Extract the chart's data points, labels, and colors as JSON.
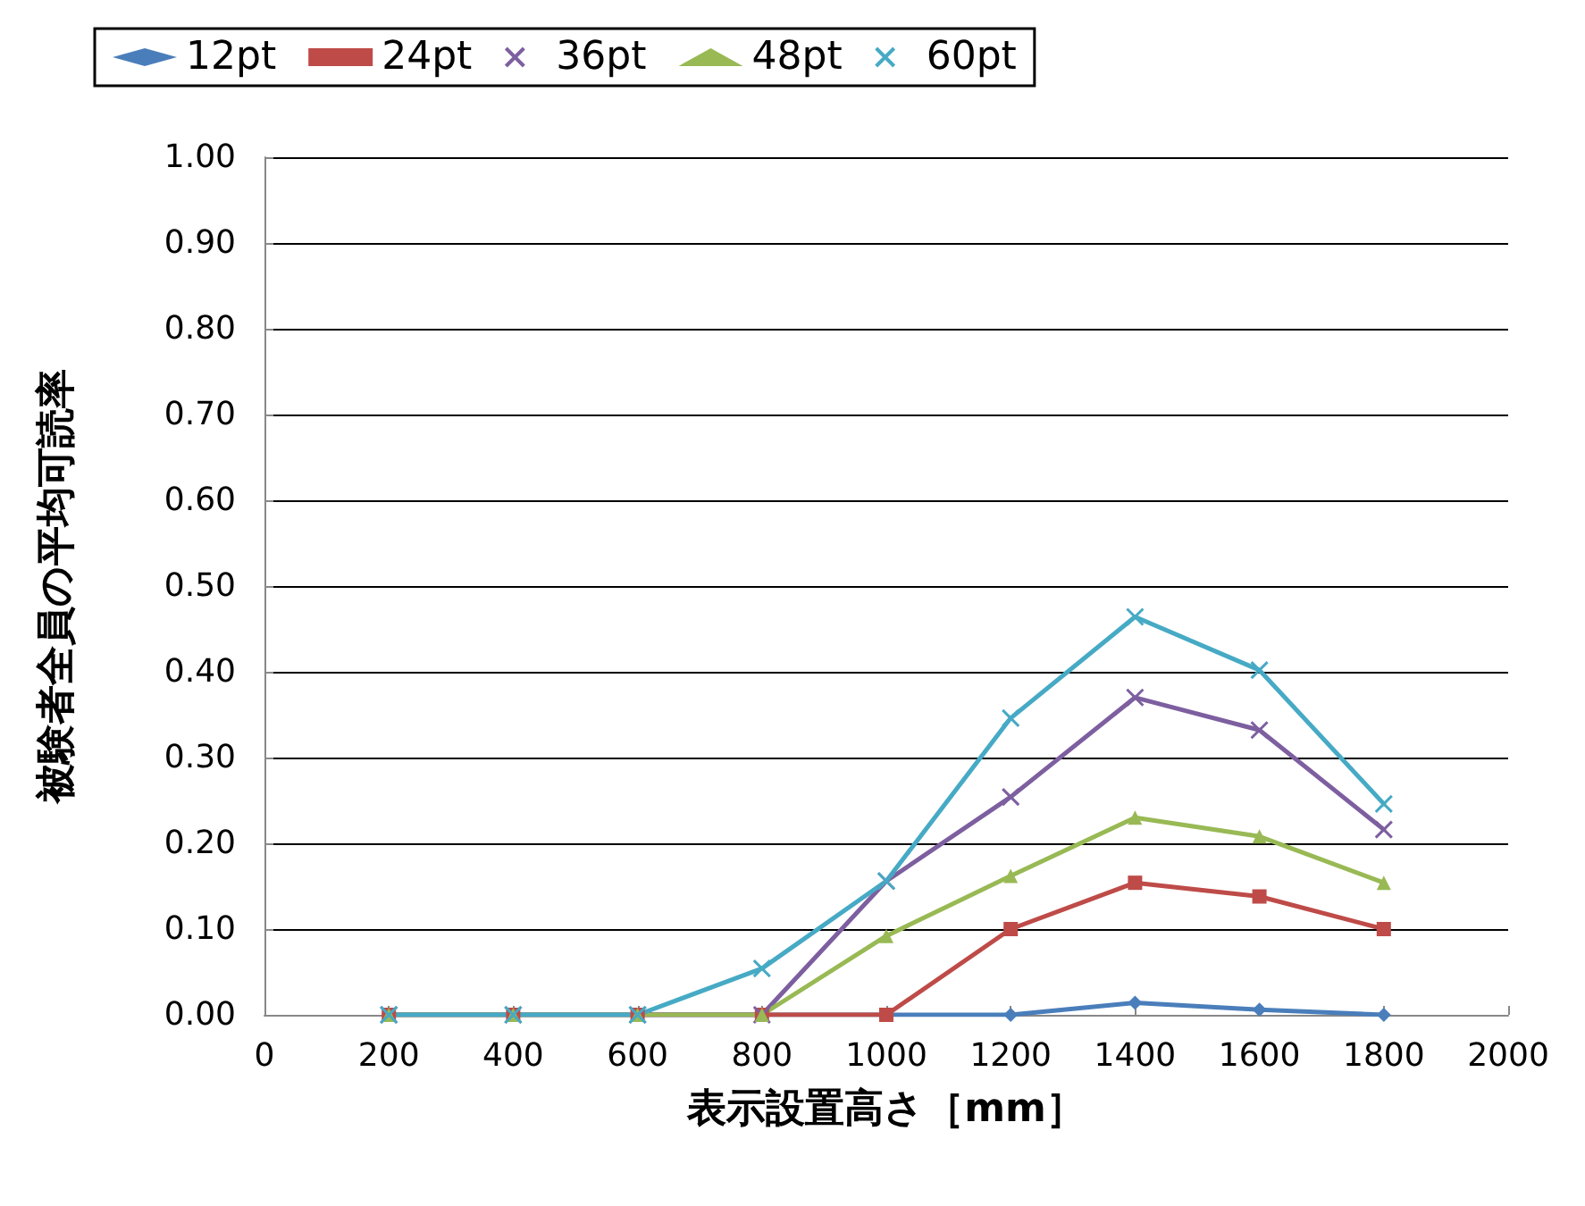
{
  "chart_data": {
    "type": "line",
    "xlabel": "表示設置高さ［mm］",
    "ylabel": "被験者全員の平均可読率",
    "x": [
      200,
      400,
      600,
      800,
      1000,
      1200,
      1400,
      1600,
      1800
    ],
    "series": [
      {
        "name": "12pt",
        "color": "#4a7ebb",
        "marker": "diamond",
        "values": [
          0,
          0,
          0,
          0,
          0,
          0,
          0.014,
          0.006,
          0
        ]
      },
      {
        "name": "24pt",
        "color": "#be4b48",
        "marker": "square",
        "values": [
          0,
          0,
          0,
          0,
          0,
          0.1,
          0.154,
          0.138,
          0.1
        ]
      },
      {
        "name": "36pt",
        "color": "#7d5fa0",
        "marker": "cross",
        "values": [
          0,
          0,
          0,
          0,
          0.156,
          0.254,
          0.37,
          0.332,
          0.216
        ]
      },
      {
        "name": "48pt",
        "color": "#98b954",
        "marker": "triangle",
        "values": [
          0,
          0,
          0,
          0,
          0.092,
          0.162,
          0.23,
          0.208,
          0.154
        ]
      },
      {
        "name": "60pt",
        "color": "#46aac5",
        "marker": "cross",
        "values": [
          0,
          0,
          0,
          0.054,
          0.156,
          0.346,
          0.464,
          0.402,
          0.246
        ]
      }
    ],
    "xlim": [
      0,
      2000
    ],
    "xticks": [
      0,
      200,
      400,
      600,
      800,
      1000,
      1200,
      1400,
      1600,
      1800,
      2000
    ],
    "ylim": [
      0,
      1
    ],
    "yticks": [
      {
        "value": 0,
        "label": "0.00"
      },
      {
        "value": 0.1,
        "label": "0.10"
      },
      {
        "value": 0.2,
        "label": "0.20"
      },
      {
        "value": 0.3,
        "label": "0.30"
      },
      {
        "value": 0.4,
        "label": "0.40"
      },
      {
        "value": 0.5,
        "label": "0.50"
      },
      {
        "value": 0.6,
        "label": "0.60"
      },
      {
        "value": 0.7,
        "label": "0.70"
      },
      {
        "value": 0.8,
        "label": "0.80"
      },
      {
        "value": 0.9,
        "label": "0.90"
      },
      {
        "value": 1,
        "label": "1.00"
      }
    ],
    "grid": "y",
    "legend": "top",
    "line_style": "solid"
  }
}
